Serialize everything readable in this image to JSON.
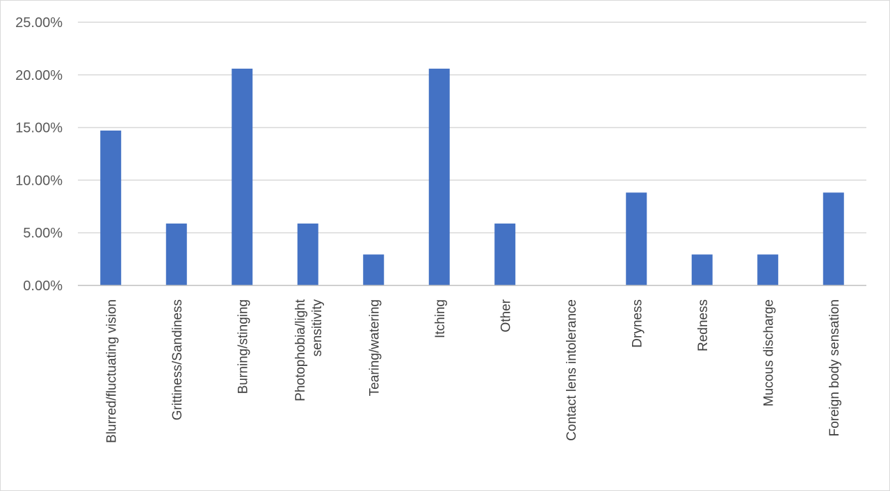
{
  "chart_data": {
    "type": "bar",
    "categories": [
      [
        "Blurred/fluctuating vision"
      ],
      [
        "Grittiness/Sandiness"
      ],
      [
        "Burning/stinging"
      ],
      [
        "Photophobia/light",
        "sensitivity"
      ],
      [
        "Tearing/watering"
      ],
      [
        "Itching"
      ],
      [
        "Other"
      ],
      [
        "Contact lens intolerance"
      ],
      [
        "Dryness"
      ],
      [
        "Redness"
      ],
      [
        "Mucous discharge"
      ],
      [
        "Foreign body sensation"
      ]
    ],
    "values": [
      14.71,
      5.88,
      20.59,
      5.88,
      2.94,
      20.59,
      5.88,
      0.0,
      8.82,
      2.94,
      2.94,
      8.82
    ],
    "ylim": [
      0,
      25
    ],
    "yticks": [
      {
        "value": 0,
        "label": "0.00%"
      },
      {
        "value": 5,
        "label": "5.00%"
      },
      {
        "value": 10,
        "label": "10.00%"
      },
      {
        "value": 15,
        "label": "15.00%"
      },
      {
        "value": 20,
        "label": "20.00%"
      },
      {
        "value": 25,
        "label": "25.00%"
      }
    ],
    "grid": true,
    "legend": "none",
    "bar_color": "#4472C4",
    "grid_color": "#d9d9d9",
    "axis_color": "#bfbfbf"
  }
}
